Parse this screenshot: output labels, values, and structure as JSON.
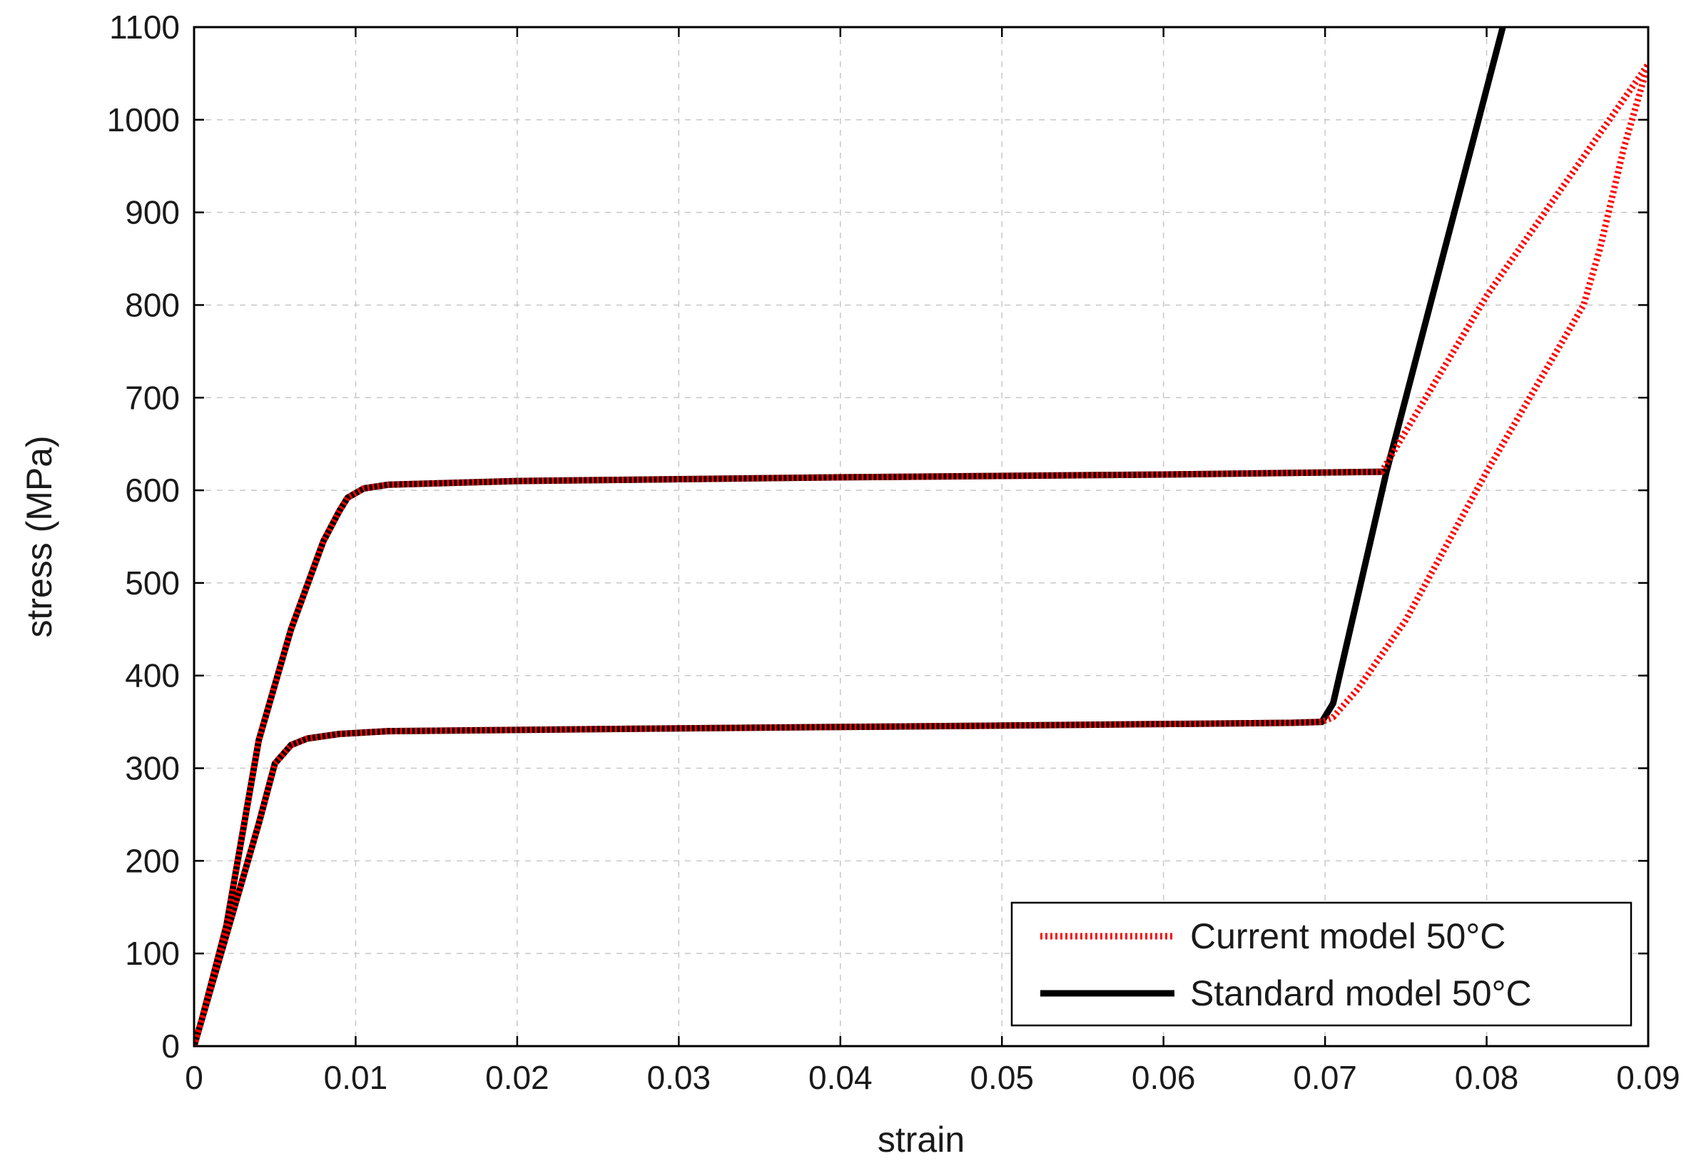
{
  "chart_data": {
    "type": "line",
    "title": "",
    "xlabel": "strain",
    "ylabel": "stress (MPa)",
    "xlim": [
      0,
      0.09
    ],
    "ylim": [
      0,
      1100
    ],
    "x_ticks": [
      0,
      0.01,
      0.02,
      0.03,
      0.04,
      0.05,
      0.06,
      0.07,
      0.08,
      0.09
    ],
    "x_tick_labels": [
      "0",
      "0.01",
      "0.02",
      "0.03",
      "0.04",
      "0.05",
      "0.06",
      "0.07",
      "0.08",
      "0.09"
    ],
    "y_ticks": [
      0,
      100,
      200,
      300,
      400,
      500,
      600,
      700,
      800,
      900,
      1000,
      1100
    ],
    "y_tick_labels": [
      "0",
      "100",
      "200",
      "300",
      "400",
      "500",
      "600",
      "700",
      "800",
      "900",
      "1000",
      "1100"
    ],
    "grid": true,
    "legend_position": "bottom-right",
    "series": [
      {
        "name": "Current model 50°C",
        "color": "#ff0000",
        "style": "dotted",
        "x": [
          0,
          0.0005,
          0.002,
          0.004,
          0.006,
          0.008,
          0.009,
          0.0095,
          0.0105,
          0.012,
          0.02,
          0.04,
          0.06,
          0.0735,
          0.08,
          0.09,
          0.0885,
          0.087,
          0.086,
          0.08,
          0.075,
          0.072,
          0.0705,
          0.0698,
          0.068,
          0.05,
          0.03,
          0.012,
          0.009,
          0.007,
          0.006,
          0.005,
          0.004,
          0.002,
          0
        ],
        "y": [
          0,
          30,
          130,
          330,
          450,
          545,
          578,
          592,
          602,
          606,
          610,
          614,
          617,
          620,
          810,
          1060,
          970,
          860,
          800,
          620,
          460,
          385,
          355,
          350,
          349,
          346,
          343,
          340,
          337,
          332,
          325,
          305,
          240,
          120,
          0
        ]
      },
      {
        "name": "Standard model 50°C",
        "color": "#000000",
        "style": "solid",
        "x": [
          0,
          0.0005,
          0.002,
          0.004,
          0.006,
          0.008,
          0.009,
          0.0095,
          0.0105,
          0.012,
          0.02,
          0.04,
          0.06,
          0.0735,
          0.0738,
          0.081,
          0.0738,
          0.0705,
          0.0698,
          0.068,
          0.05,
          0.03,
          0.012,
          0.009,
          0.007,
          0.006,
          0.005,
          0.004,
          0.002,
          0
        ],
        "y": [
          0,
          30,
          130,
          330,
          450,
          545,
          578,
          592,
          602,
          606,
          610,
          614,
          617,
          620,
          620,
          1100,
          620,
          370,
          350,
          349,
          346,
          343,
          340,
          337,
          332,
          325,
          305,
          240,
          120,
          0
        ]
      }
    ]
  }
}
